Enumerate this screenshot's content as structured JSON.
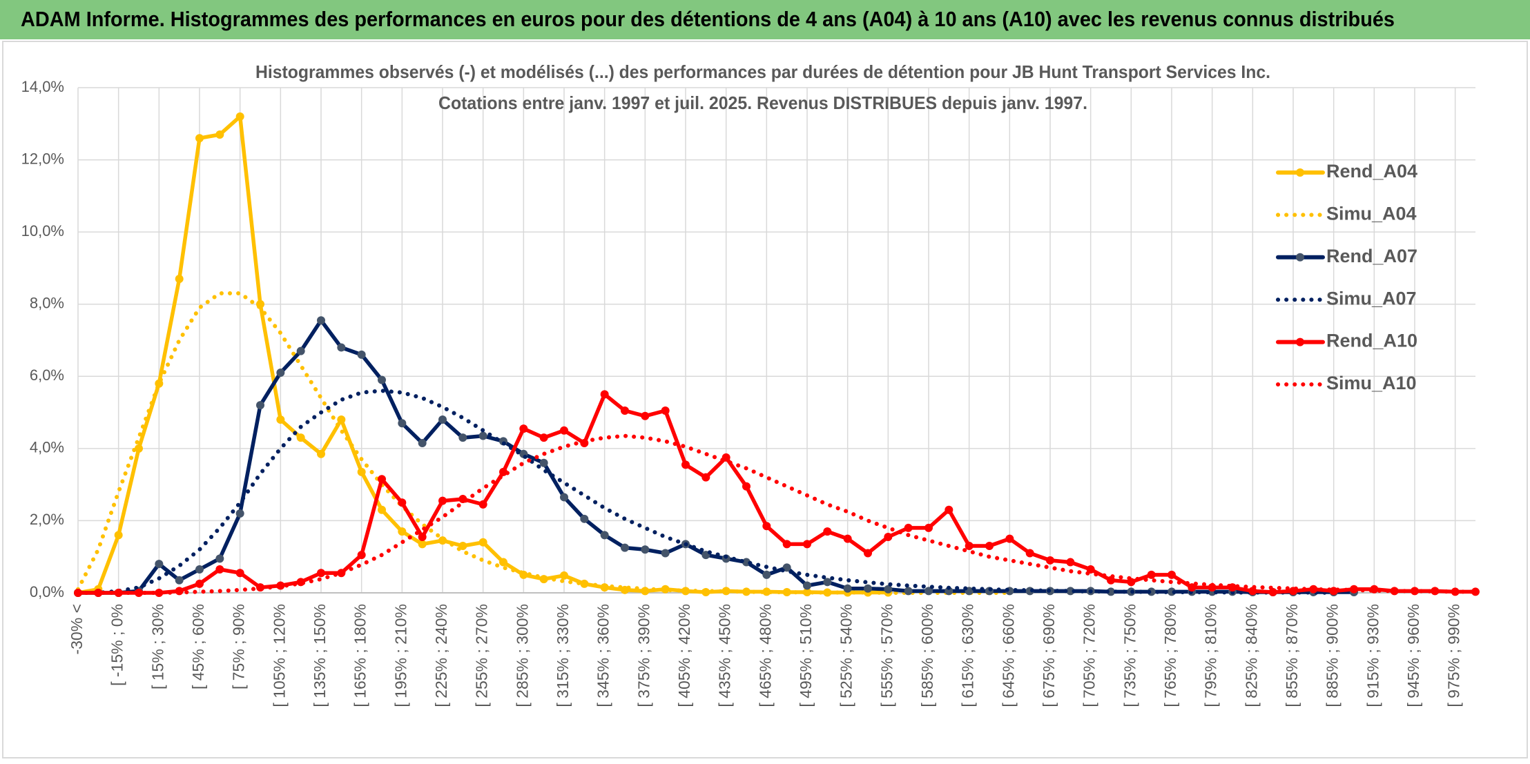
{
  "chart_data": {
    "type": "line",
    "banner": "ADAM Informe. Histogrammes des performances en euros pour des détentions de 4 ans (A04) à 10 ans (A10) avec les revenus connus distribués",
    "title": "Histogrammes observés (-) et modélisés (...) des performances par durées de détention pour JB Hunt Transport Services Inc.",
    "subtitle": "Cotations entre janv. 1997 et juil. 2025. Revenus DISTRIBUES depuis janv. 1997.",
    "categories": [
      "-30% <",
      null,
      "[ -15% ; 0%",
      null,
      "[ 15% ; 30%",
      null,
      "[ 45% ; 60%",
      null,
      "[ 75% ; 90%",
      null,
      "[ 105% ; 120%",
      null,
      "[ 135% ; 150%",
      null,
      "[ 165% ; 180%",
      null,
      "[ 195% ; 210%",
      null,
      "[ 225% ; 240%",
      null,
      "[ 255% ; 270%",
      null,
      "[ 285% ; 300%",
      null,
      "[ 315% ; 330%",
      null,
      "[ 345% ; 360%",
      null,
      "[ 375% ; 390%",
      null,
      "[ 405% ; 420%",
      null,
      "[ 435% ; 450%",
      null,
      "[ 465% ; 480%",
      null,
      "[ 495% ; 510%",
      null,
      "[ 525% ; 540%",
      null,
      "[ 555% ; 570%",
      null,
      "[ 585% ; 600%",
      null,
      "[ 615% ; 630%",
      null,
      "[ 645% ; 660%",
      null,
      "[ 675% ; 690%",
      null,
      "[ 705% ; 720%",
      null,
      "[ 735% ; 750%",
      null,
      "[ 765% ; 780%",
      null,
      "[ 795% ; 810%",
      null,
      "[ 825% ; 840%",
      null,
      "[ 855% ; 870%",
      null,
      "[ 885% ; 900%",
      null,
      "[ 915% ; 930%",
      null,
      "[ 945% ; 960%",
      null,
      "[ 975% ; 990%",
      null
    ],
    "ylim": [
      0,
      14
    ],
    "yticks": [
      {
        "value": 0,
        "label": "0,0%"
      },
      {
        "value": 2,
        "label": "2,0%"
      },
      {
        "value": 4,
        "label": "4,0%"
      },
      {
        "value": 6,
        "label": "6,0%"
      },
      {
        "value": 8,
        "label": "8,0%"
      },
      {
        "value": 10,
        "label": "10,0%"
      },
      {
        "value": 12,
        "label": "12,0%"
      },
      {
        "value": 14,
        "label": "14,0%"
      }
    ],
    "grid": true,
    "legend": "right",
    "series": [
      {
        "name": "Rend_A04",
        "color": "#ffc000",
        "style": "solid",
        "markers": true,
        "values": [
          0,
          0.1,
          1.6,
          4.0,
          5.8,
          8.7,
          12.6,
          12.7,
          13.2,
          8.0,
          4.8,
          4.3,
          3.85,
          4.8,
          3.35,
          2.3,
          1.7,
          1.35,
          1.45,
          1.3,
          1.4,
          0.85,
          0.5,
          0.38,
          0.48,
          0.25,
          0.15,
          0.08,
          0.05,
          0.1,
          0.05,
          0.02,
          0.05,
          0.03,
          0.03,
          0.02,
          0.02,
          0.01,
          0.01,
          0.01,
          0.01,
          null,
          null,
          null,
          null,
          null,
          null,
          null,
          null,
          null,
          null,
          null,
          null,
          null,
          null,
          null,
          null,
          null,
          null,
          null,
          null,
          null,
          null,
          null,
          null,
          null,
          null,
          null,
          null,
          null
        ]
      },
      {
        "name": "Simu_A04",
        "color": "#ffc000",
        "style": "dotted",
        "markers": false,
        "values": [
          0.1,
          1.2,
          2.8,
          4.3,
          5.8,
          7.0,
          7.9,
          8.3,
          8.3,
          7.9,
          7.2,
          6.3,
          5.4,
          4.5,
          3.7,
          3.0,
          2.4,
          1.9,
          1.5,
          1.15,
          0.9,
          0.7,
          0.55,
          0.42,
          0.32,
          0.25,
          0.19,
          0.15,
          0.11,
          0.08,
          0.06,
          0.05,
          0.04,
          0.03,
          0.02,
          0.02,
          0.01,
          0.01,
          0.01,
          0.01,
          0,
          0,
          0,
          0,
          0,
          0,
          0,
          null,
          null,
          null,
          null,
          null,
          null,
          null,
          null,
          null,
          null,
          null,
          null,
          null,
          null,
          null,
          null,
          null,
          null,
          null,
          null,
          null,
          null,
          null
        ]
      },
      {
        "name": "Rend_A07",
        "color": "#002060",
        "marker_color": "#44546a",
        "style": "solid",
        "markers": true,
        "values": [
          0,
          0,
          0,
          0.05,
          0.8,
          0.35,
          0.65,
          0.95,
          2.2,
          5.2,
          6.1,
          6.7,
          7.55,
          6.8,
          6.6,
          5.9,
          4.7,
          4.15,
          4.8,
          4.3,
          4.35,
          4.2,
          3.85,
          3.6,
          2.65,
          2.05,
          1.6,
          1.25,
          1.2,
          1.1,
          1.35,
          1.05,
          0.95,
          0.85,
          0.5,
          0.7,
          0.2,
          0.3,
          0.12,
          0.12,
          0.1,
          0.05,
          0.05,
          0.05,
          0.05,
          0.05,
          0.05,
          0.05,
          0.05,
          0.05,
          0.05,
          0.03,
          0.03,
          0.03,
          0.03,
          0.03,
          0.03,
          0.03,
          0.02,
          0.02,
          0.02,
          0.02,
          0.02,
          0.02,
          null,
          null,
          null,
          null,
          null,
          null
        ]
      },
      {
        "name": "Simu_A07",
        "color": "#002060",
        "style": "dotted",
        "markers": false,
        "values": [
          0,
          0,
          0.05,
          0.15,
          0.4,
          0.75,
          1.2,
          1.8,
          2.5,
          3.3,
          4.0,
          4.6,
          5.0,
          5.35,
          5.55,
          5.6,
          5.55,
          5.4,
          5.15,
          4.85,
          4.5,
          4.15,
          3.8,
          3.4,
          3.05,
          2.7,
          2.35,
          2.05,
          1.8,
          1.55,
          1.35,
          1.15,
          1.0,
          0.85,
          0.72,
          0.6,
          0.5,
          0.42,
          0.35,
          0.29,
          0.24,
          0.2,
          0.17,
          0.14,
          0.12,
          0.1,
          0.08,
          0.07,
          0.06,
          0.05,
          0.04,
          0.035,
          0.03,
          0.025,
          0.02,
          0.02,
          0.015,
          0.01,
          0.01,
          0.01,
          0.01,
          0.01,
          0,
          null,
          null,
          null,
          null,
          null,
          null,
          null
        ]
      },
      {
        "name": "Rend_A10",
        "color": "#ff0000",
        "style": "solid",
        "markers": true,
        "values": [
          0,
          0,
          0,
          0,
          0,
          0.05,
          0.25,
          0.65,
          0.55,
          0.15,
          0.2,
          0.3,
          0.55,
          0.55,
          1.05,
          3.15,
          2.5,
          1.55,
          2.55,
          2.6,
          2.45,
          3.35,
          4.55,
          4.3,
          4.5,
          4.15,
          5.5,
          5.05,
          4.9,
          5.05,
          3.55,
          3.2,
          3.75,
          2.95,
          1.85,
          1.35,
          1.35,
          1.7,
          1.5,
          1.1,
          1.55,
          1.8,
          1.8,
          2.3,
          1.3,
          1.3,
          1.5,
          1.1,
          0.9,
          0.85,
          0.65,
          0.35,
          0.3,
          0.5,
          0.5,
          0.15,
          0.15,
          0.15,
          0.05,
          0.02,
          0.05,
          0.1,
          0.05,
          0.1,
          0.1,
          0.05,
          0.05,
          0.05,
          0.03,
          0.03
        ]
      },
      {
        "name": "Simu_A10",
        "color": "#ff0000",
        "style": "dotted",
        "markers": false,
        "values": [
          0,
          0,
          0,
          0,
          0,
          0.01,
          0.03,
          0.05,
          0.08,
          0.12,
          0.18,
          0.26,
          0.38,
          0.55,
          0.78,
          1.05,
          1.4,
          1.75,
          2.1,
          2.5,
          2.9,
          3.25,
          3.6,
          3.85,
          4.05,
          4.2,
          4.3,
          4.35,
          4.3,
          4.2,
          4.05,
          3.85,
          3.65,
          3.45,
          3.2,
          2.95,
          2.7,
          2.45,
          2.25,
          2.0,
          1.8,
          1.6,
          1.45,
          1.3,
          1.15,
          1.0,
          0.9,
          0.8,
          0.7,
          0.6,
          0.53,
          0.46,
          0.4,
          0.35,
          0.3,
          0.26,
          0.22,
          0.19,
          0.16,
          0.14,
          0.12,
          0.1,
          0.09,
          0.08,
          0.06,
          0.05,
          0.05,
          0.04,
          0.03,
          0.03
        ]
      }
    ]
  }
}
